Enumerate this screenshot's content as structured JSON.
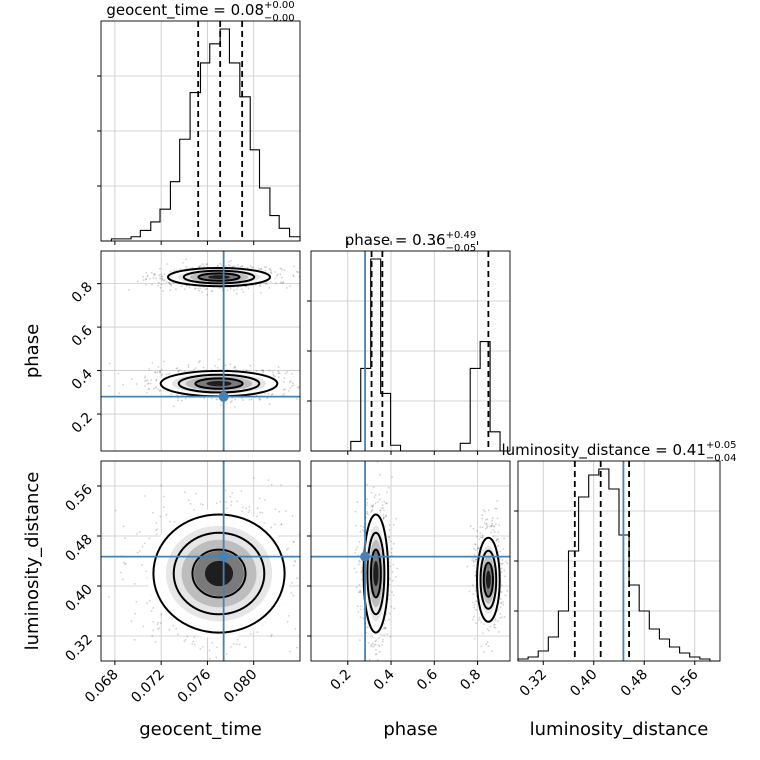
{
  "chart_data": {
    "type": "corner",
    "parameters": [
      {
        "key": "geocent_time",
        "xlabel": "geocent_time",
        "ylabel": "",
        "title_main": "geocent_time = 0.08",
        "title_plus": "+0.00",
        "title_minus": "−0.00",
        "range": [
          0.0668,
          0.084
        ],
        "ticks": [
          "0.068",
          "0.072",
          "0.076",
          "0.080"
        ],
        "tick_values": [
          0.068,
          0.072,
          0.076,
          0.08
        ],
        "quantiles": [
          0.0752,
          0.0771,
          0.079
        ],
        "truth": 0.0774,
        "hist_edges": [
          0.0668,
          0.0677,
          0.0685,
          0.0694,
          0.0702,
          0.0711,
          0.0719,
          0.0728,
          0.0736,
          0.0745,
          0.0754,
          0.0762,
          0.0771,
          0.0779,
          0.0788,
          0.0797,
          0.0805,
          0.0814,
          0.0822,
          0.0831,
          0.084
        ],
        "hist_counts": [
          0,
          1,
          1,
          2,
          5,
          9,
          15,
          28,
          48,
          70,
          84,
          93,
          100,
          84,
          68,
          43,
          25,
          12,
          6,
          2
        ]
      },
      {
        "key": "phase",
        "xlabel": "phase",
        "ylabel": "phase",
        "title_main": "phase = 0.36",
        "title_plus": "+0.49",
        "title_minus": "−0.05",
        "range": [
          0.03,
          0.95
        ],
        "ticks": [
          "0.2",
          "0.4",
          "0.6",
          "0.8"
        ],
        "tick_values": [
          0.2,
          0.4,
          0.6,
          0.8
        ],
        "quantiles": [
          0.31,
          0.36,
          0.85
        ],
        "truth": 0.28,
        "hist_edges": [
          0.03,
          0.076,
          0.122,
          0.168,
          0.214,
          0.26,
          0.306,
          0.352,
          0.398,
          0.444,
          0.49,
          0.536,
          0.582,
          0.628,
          0.674,
          0.72,
          0.766,
          0.812,
          0.858,
          0.904,
          0.95
        ],
        "hist_counts": [
          0,
          0,
          0,
          0,
          5,
          43,
          100,
          30,
          3,
          0,
          0,
          0,
          0,
          0,
          0,
          4,
          43,
          57,
          10,
          0
        ]
      },
      {
        "key": "luminosity_distance",
        "xlabel": "luminosity_distance",
        "ylabel": "luminosity_distance",
        "title_main": "luminosity_distance = 0.41",
        "title_plus": "+0.05",
        "title_minus": "−0.04",
        "range": [
          0.28,
          0.6
        ],
        "ticks": [
          "0.32",
          "0.40",
          "0.48",
          "0.56"
        ],
        "tick_values": [
          0.32,
          0.4,
          0.48,
          0.56
        ],
        "quantiles": [
          0.37,
          0.411,
          0.456
        ],
        "truth": 0.447,
        "hist_edges": [
          0.28,
          0.296,
          0.312,
          0.328,
          0.344,
          0.36,
          0.376,
          0.392,
          0.408,
          0.424,
          0.44,
          0.456,
          0.472,
          0.488,
          0.504,
          0.52,
          0.536,
          0.552,
          0.568,
          0.584,
          0.6
        ],
        "hist_counts": [
          1,
          2,
          5,
          12,
          25,
          55,
          82,
          93,
          96,
          86,
          63,
          38,
          25,
          16,
          11,
          7,
          4,
          2,
          1,
          0
        ]
      }
    ],
    "panels_2d": [
      {
        "x": "geocent_time",
        "y": "phase",
        "modes": [
          {
            "x": 0.077,
            "y": 0.34,
            "sx": 0.0024,
            "sy": 0.028
          },
          {
            "x": 0.077,
            "y": 0.83,
            "sx": 0.0021,
            "sy": 0.02
          }
        ]
      },
      {
        "x": "geocent_time",
        "y": "luminosity_distance",
        "modes": [
          {
            "x": 0.077,
            "y": 0.42,
            "sx": 0.0027,
            "sy": 0.045
          }
        ]
      },
      {
        "x": "phase",
        "y": "luminosity_distance",
        "modes": [
          {
            "x": 0.33,
            "y": 0.42,
            "sx": 0.027,
            "sy": 0.045
          },
          {
            "x": 0.85,
            "y": 0.41,
            "sx": 0.025,
            "sy": 0.032
          }
        ]
      }
    ],
    "grid": true,
    "truth_color": "#4682b4"
  }
}
